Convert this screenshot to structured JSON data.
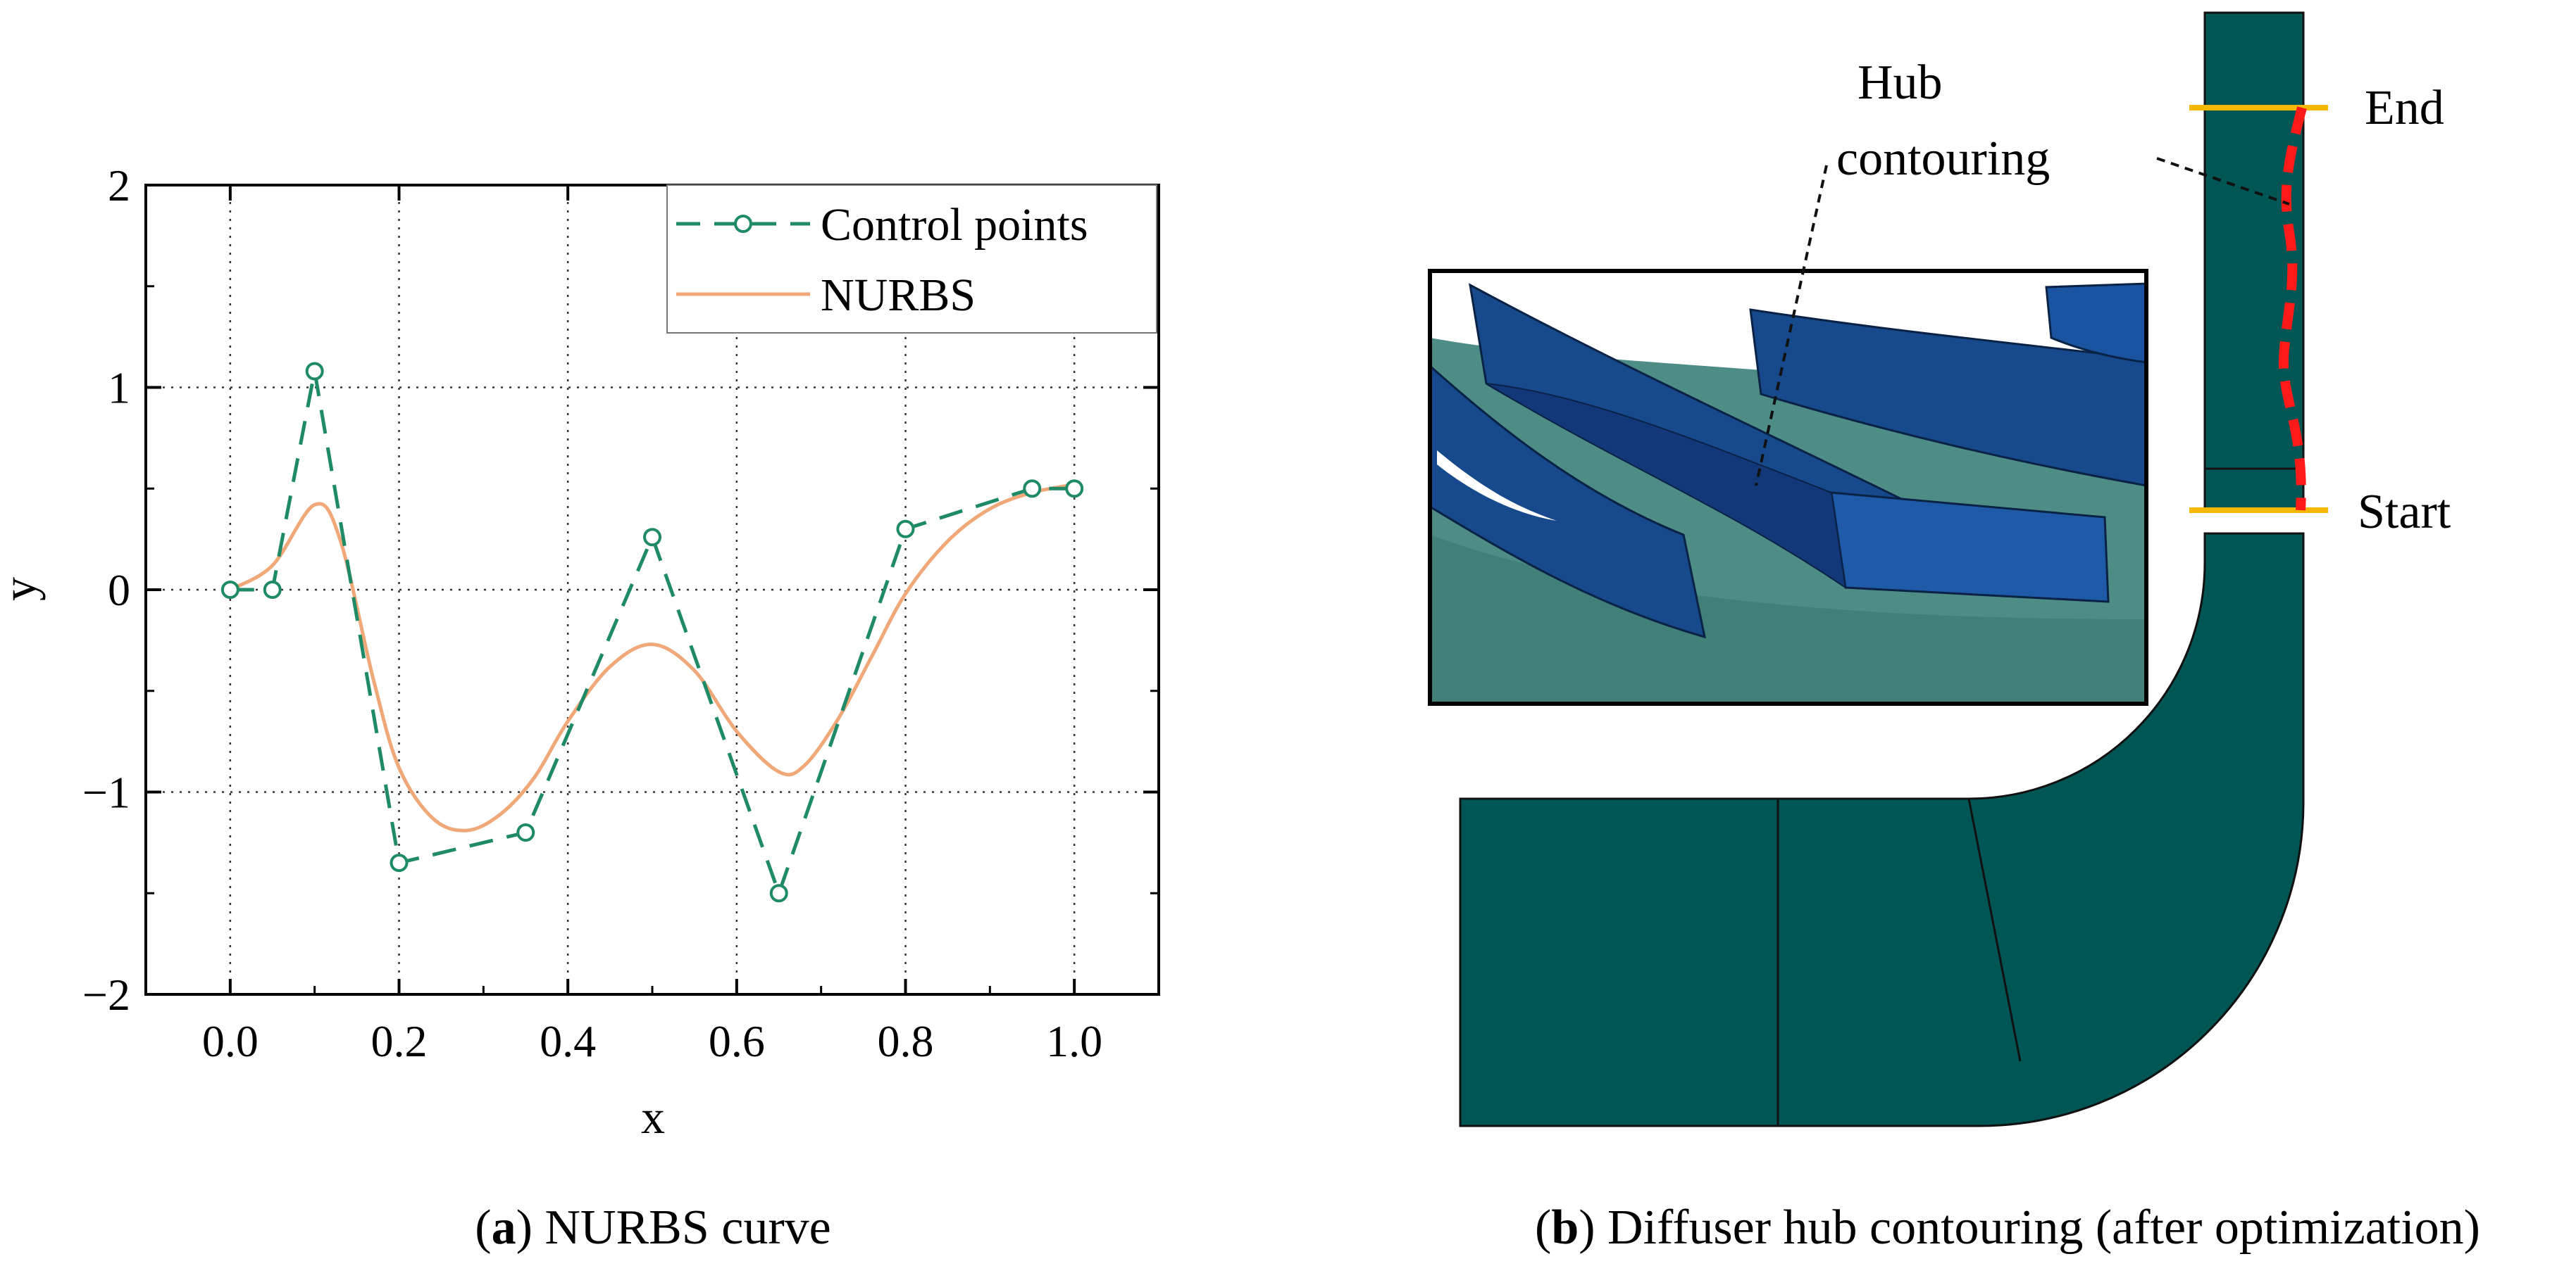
{
  "panel_a": {
    "caption_letter": "a",
    "caption_text": ") NURBS curve",
    "legend": {
      "control_label": "Control points",
      "curve_label": "NURBS"
    }
  },
  "panel_b": {
    "caption_letter": "b",
    "caption_text": ") Diffuser hub contouring (after optimization)",
    "annotations": {
      "hub_line1": "Hub",
      "hub_line2": "contouring",
      "end": "End",
      "start": "Start"
    }
  },
  "colors": {
    "control": "#1f8a66",
    "nurbs": "#f0a878",
    "diffuser": "#005555",
    "blade": "#174a8c",
    "blade_face": "#12387a",
    "hub_surface": "#4e8c86",
    "marker": "#f5b800",
    "contour": "#ff1a1a"
  },
  "chart_data": {
    "type": "line",
    "xlabel": "x",
    "ylabel": "y",
    "xlim": [
      -0.1,
      1.1
    ],
    "ylim": [
      -2,
      2
    ],
    "x_ticks": [
      "0.0",
      "0.2",
      "0.4",
      "0.6",
      "0.8",
      "1.0"
    ],
    "y_ticks": [
      "−2",
      "−1",
      "0",
      "1",
      "2"
    ],
    "grid": true,
    "legend_position": "top-right",
    "series": [
      {
        "name": "Control points",
        "style": "dashed-markers",
        "x": [
          0.0,
          0.05,
          0.1,
          0.2,
          0.35,
          0.5,
          0.65,
          0.8,
          0.95,
          1.0
        ],
        "y": [
          0.0,
          0.0,
          1.08,
          -1.35,
          -1.2,
          0.26,
          -1.5,
          0.3,
          0.5,
          0.5
        ]
      },
      {
        "name": "NURBS",
        "style": "solid",
        "x": [
          0.0,
          0.05,
          0.1,
          0.13,
          0.17,
          0.2,
          0.24,
          0.28,
          0.32,
          0.36,
          0.4,
          0.45,
          0.5,
          0.55,
          0.6,
          0.65,
          0.68,
          0.72,
          0.76,
          0.8,
          0.85,
          0.9,
          0.95,
          1.0
        ],
        "y": [
          0.0,
          0.12,
          0.42,
          0.25,
          -0.45,
          -0.88,
          -1.13,
          -1.19,
          -1.11,
          -0.93,
          -0.65,
          -0.38,
          -0.27,
          -0.4,
          -0.7,
          -0.9,
          -0.87,
          -0.64,
          -0.33,
          -0.02,
          0.24,
          0.4,
          0.48,
          0.52
        ]
      }
    ]
  }
}
